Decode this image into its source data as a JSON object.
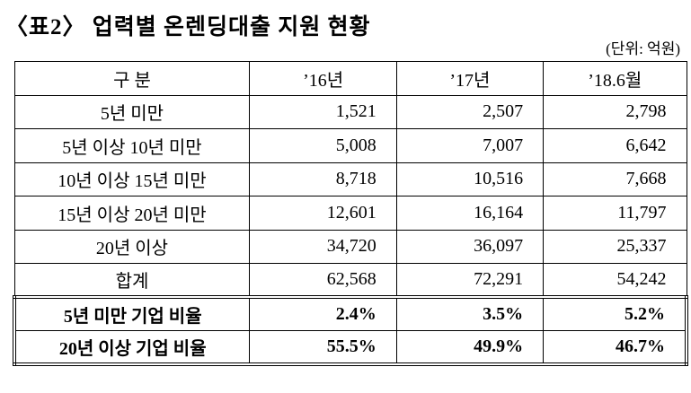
{
  "title": "〈표2〉 업력별 온렌딩대출 지원 현황",
  "unit": "(단위: 억원)",
  "table": {
    "headers": [
      "구   분",
      "’16년",
      "’17년",
      "’18.6월"
    ],
    "rows": [
      [
        "5년 미만",
        "1,521",
        "2,507",
        "2,798"
      ],
      [
        "5년 이상 10년 미만",
        "5,008",
        "7,007",
        "6,642"
      ],
      [
        "10년 이상 15년 미만",
        "8,718",
        "10,516",
        "7,668"
      ],
      [
        "15년 이상 20년 미만",
        "12,601",
        "16,164",
        "11,797"
      ],
      [
        "20년 이상",
        "34,720",
        "36,097",
        "25,337"
      ],
      [
        "합계",
        "62,568",
        "72,291",
        "54,242"
      ]
    ],
    "ratio_rows": [
      [
        "5년 미만 기업 비율",
        "2.4%",
        "3.5%",
        "5.2%"
      ],
      [
        "20년 이상 기업 비율",
        "55.5%",
        "49.9%",
        "46.7%"
      ]
    ]
  }
}
